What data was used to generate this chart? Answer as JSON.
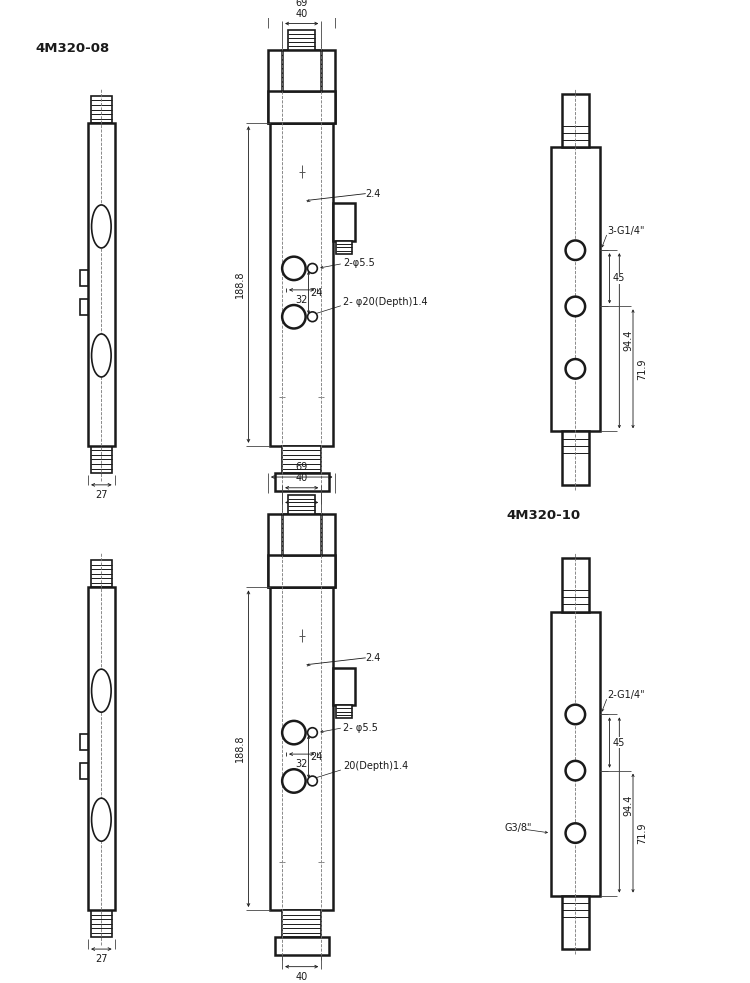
{
  "title_top": "4M320-08",
  "title_bottom": "4M320-10",
  "line_color": "#1a1a1a",
  "text_color": "#1a1a1a",
  "dim_69": "69",
  "dim_40": "40",
  "dim_188_8": "188.8",
  "dim_27": "27",
  "dim_2_4": "2.4",
  "dim_phi20_top": "2- φ20(Depth)1.4",
  "dim_phi20_bot": "20(Depth)1.4",
  "dim_24": "24",
  "dim_phi5_5_top": "2-φ5.5",
  "dim_phi5_5_bot": "2- φ5.5",
  "dim_32": "32",
  "dim_94_4": "94.4",
  "dim_71_9": "71.9",
  "dim_45": "45",
  "dim_3G14": "3-G1/4\"",
  "dim_2G14": "2-G1/4\"",
  "dim_G38": "G3/8\""
}
